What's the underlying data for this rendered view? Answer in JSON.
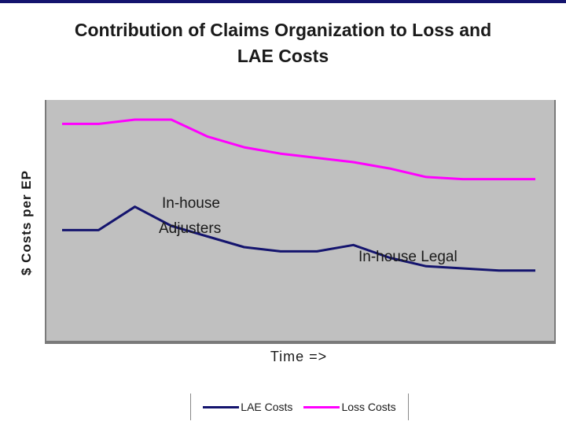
{
  "chart_data": {
    "type": "line",
    "title_line1": "Contribution of Claims Organization to Loss and",
    "title_line2": "LAE Costs",
    "xlabel": "Time =>",
    "ylabel": "$ Costs per EP",
    "x": [
      0,
      1,
      2,
      3,
      4,
      5,
      6,
      7,
      8,
      9,
      10,
      11,
      12,
      13
    ],
    "xlim": [
      0,
      13
    ],
    "ylim": [
      0,
      100
    ],
    "grid": false,
    "background": "#c0c0c0",
    "legend_position": "bottom",
    "series": [
      {
        "name": "LAE Costs",
        "color": "#14146e",
        "values": [
          38,
          38,
          49,
          40,
          35,
          30,
          28,
          28,
          31,
          25,
          21,
          20,
          19,
          19
        ]
      },
      {
        "name": "Loss Costs",
        "color": "#ff00ff",
        "values": [
          88,
          88,
          90,
          90,
          82,
          77,
          74,
          72,
          70,
          67,
          63,
          62,
          62,
          62
        ]
      }
    ],
    "annotations": [
      {
        "lines": [
          "In-house",
          "Adjusters"
        ]
      },
      {
        "lines": [
          "In-house Legal"
        ]
      }
    ]
  },
  "legend": {
    "lae_label": "LAE Costs",
    "loss_label": "Loss Costs"
  }
}
